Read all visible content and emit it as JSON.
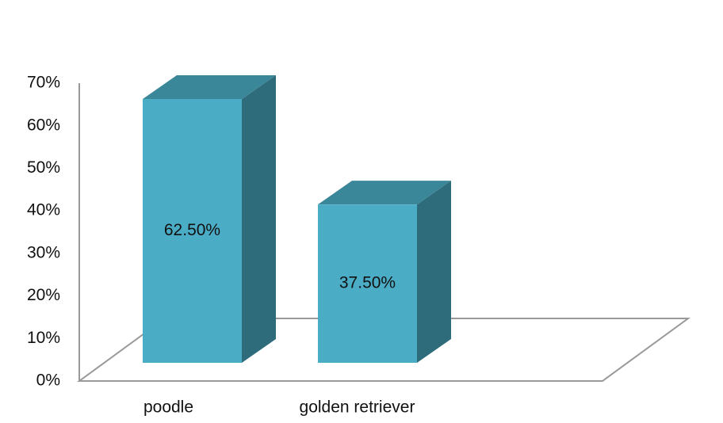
{
  "chart_data": {
    "type": "bar3d",
    "categories": [
      "poodle",
      "golden retriever"
    ],
    "values": [
      62.5,
      37.5
    ],
    "value_labels": [
      "62.50%",
      "37.50%"
    ],
    "color": "#4bacc6",
    "ylim": [
      0,
      70
    ],
    "yticks": [
      {
        "value": 0,
        "label": "0%"
      },
      {
        "value": 10,
        "label": "10%"
      },
      {
        "value": 20,
        "label": "20%"
      },
      {
        "value": 30,
        "label": "30%"
      },
      {
        "value": 40,
        "label": "40%"
      },
      {
        "value": 50,
        "label": "50%"
      },
      {
        "value": 60,
        "label": "60%"
      },
      {
        "value": 70,
        "label": "70%"
      }
    ]
  }
}
